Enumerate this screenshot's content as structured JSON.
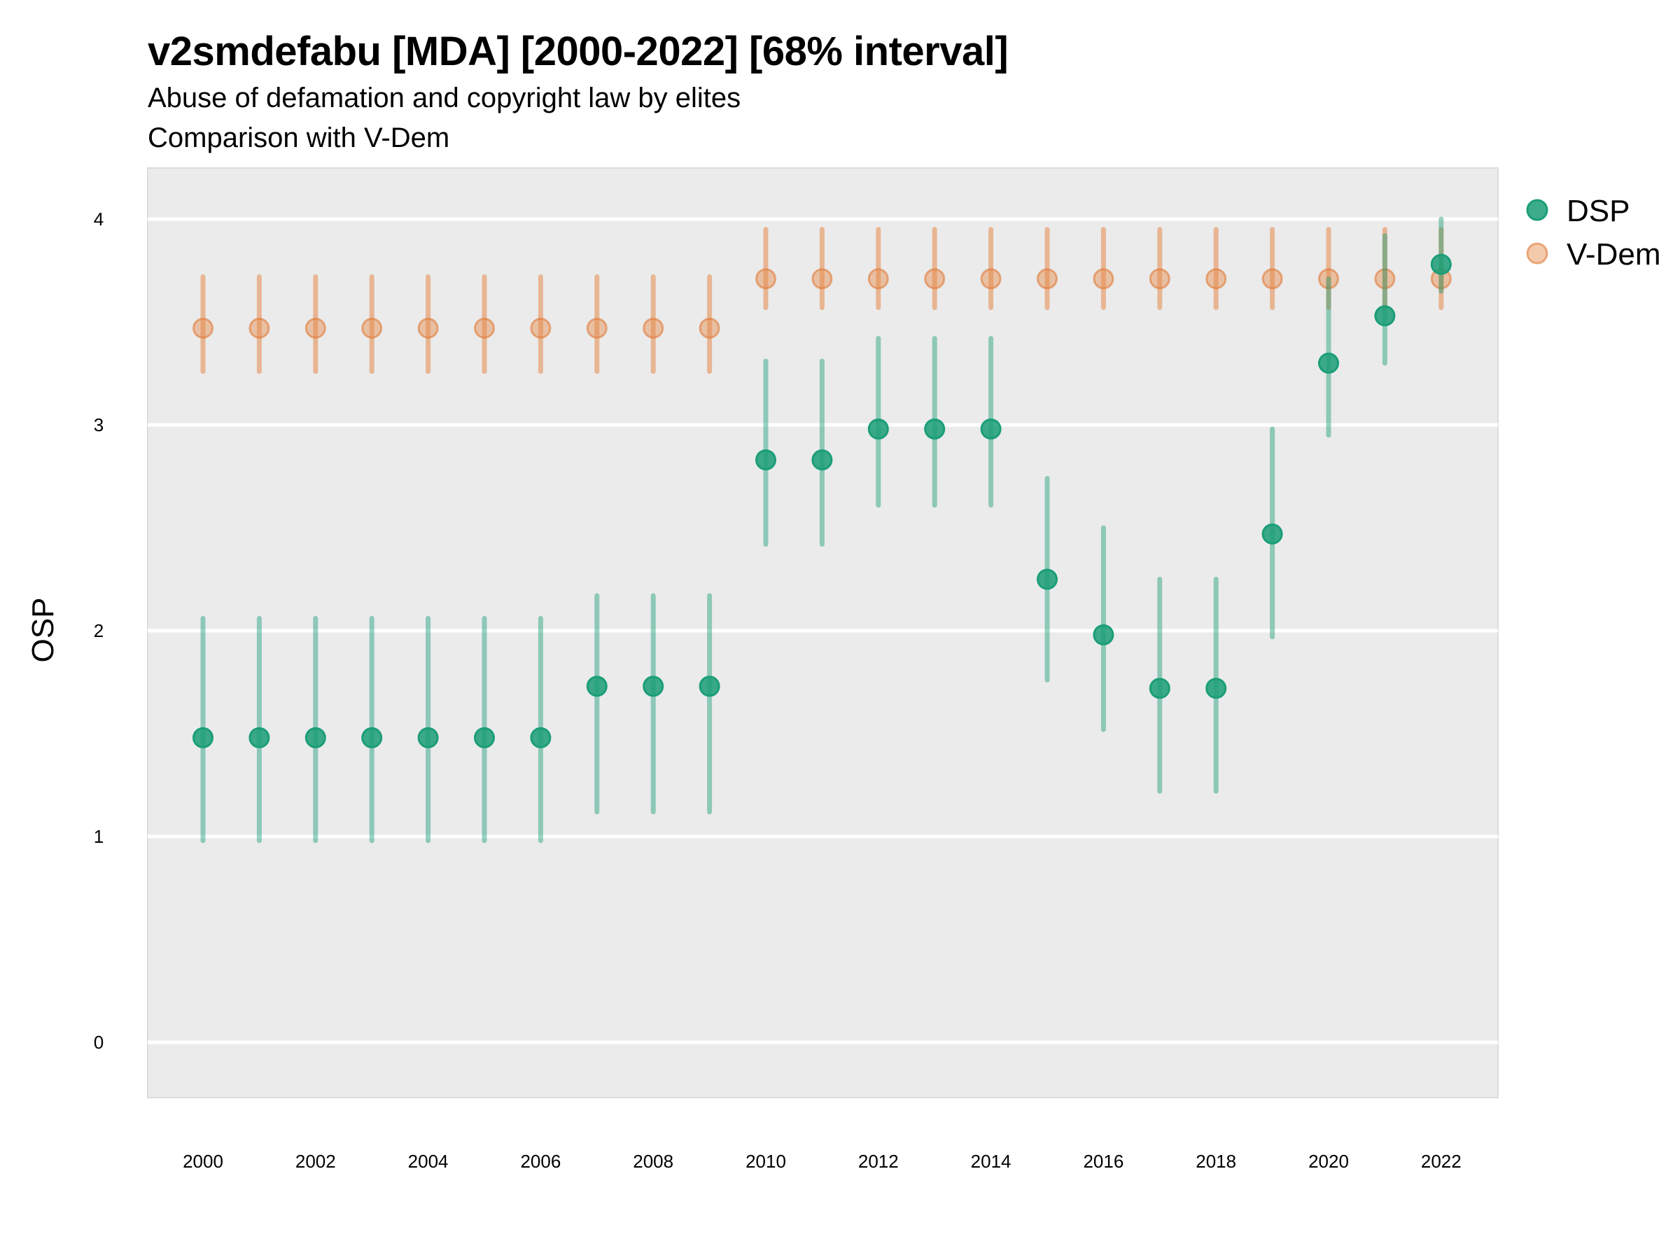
{
  "header": {
    "title": "v2smdefabu [MDA] [2000-2022] [68% interval]",
    "subtitle_1": "Abuse of defamation and copyright law by elites",
    "subtitle_2": "Comparison with V-Dem"
  },
  "colors": {
    "dsp": "#1B9E77",
    "vdem": "#E6894A",
    "panel_bg": "#EBEBEB",
    "grid": "#FFFFFF"
  },
  "chart_data": {
    "type": "scatter",
    "subtype": "point-range",
    "title": "v2smdefabu [MDA] [2000-2022] [68% interval]",
    "subtitle": "Abuse of defamation and copyright law by elites / Comparison with V-Dem",
    "xlabel": "",
    "ylabel": "OSP",
    "xlim": [
      1999,
      2023
    ],
    "ylim": [
      -0.25,
      4.25
    ],
    "grid": true,
    "legend_position": "right",
    "x_ticks": [
      2000,
      2002,
      2004,
      2006,
      2008,
      2010,
      2012,
      2014,
      2016,
      2018,
      2020,
      2022
    ],
    "x_tick_labels": [
      "2000",
      "2002",
      "2004",
      "2006",
      "2008",
      "2010",
      "2012",
      "2014",
      "2016",
      "2018",
      "2020",
      "2022"
    ],
    "y_ticks": [
      0,
      1,
      2,
      3,
      4
    ],
    "y_tick_labels": [
      "0",
      "1",
      "2",
      "3",
      "4"
    ],
    "x": [
      2000,
      2001,
      2002,
      2003,
      2004,
      2005,
      2006,
      2007,
      2008,
      2009,
      2010,
      2011,
      2012,
      2013,
      2014,
      2015,
      2016,
      2017,
      2018,
      2019,
      2020,
      2021,
      2022
    ],
    "series": [
      {
        "name": "V-Dem",
        "values": [
          3.47,
          3.47,
          3.47,
          3.47,
          3.47,
          3.47,
          3.47,
          3.47,
          3.47,
          3.47,
          3.71,
          3.71,
          3.71,
          3.71,
          3.71,
          3.71,
          3.71,
          3.71,
          3.71,
          3.71,
          3.71,
          3.71,
          3.71
        ],
        "lower": [
          3.26,
          3.26,
          3.26,
          3.26,
          3.26,
          3.26,
          3.26,
          3.26,
          3.26,
          3.26,
          3.57,
          3.57,
          3.57,
          3.57,
          3.57,
          3.57,
          3.57,
          3.57,
          3.57,
          3.57,
          3.57,
          3.57,
          3.57
        ],
        "upper": [
          3.72,
          3.72,
          3.72,
          3.72,
          3.72,
          3.72,
          3.72,
          3.72,
          3.72,
          3.72,
          3.95,
          3.95,
          3.95,
          3.95,
          3.95,
          3.95,
          3.95,
          3.95,
          3.95,
          3.95,
          3.95,
          3.95,
          3.95
        ]
      },
      {
        "name": "DSP",
        "values": [
          1.48,
          1.48,
          1.48,
          1.48,
          1.48,
          1.48,
          1.48,
          1.73,
          1.73,
          1.73,
          2.83,
          2.83,
          2.98,
          2.98,
          2.98,
          2.25,
          1.98,
          1.72,
          1.72,
          2.47,
          3.3,
          3.53,
          3.78
        ],
        "lower": [
          0.98,
          0.98,
          0.98,
          0.98,
          0.98,
          0.98,
          0.98,
          1.12,
          1.12,
          1.12,
          2.42,
          2.42,
          2.61,
          2.61,
          2.61,
          1.76,
          1.52,
          1.22,
          1.22,
          1.97,
          2.95,
          3.3,
          3.65
        ],
        "upper": [
          2.06,
          2.06,
          2.06,
          2.06,
          2.06,
          2.06,
          2.06,
          2.17,
          2.17,
          2.17,
          3.31,
          3.31,
          3.42,
          3.42,
          3.42,
          2.74,
          2.5,
          2.25,
          2.25,
          2.98,
          3.71,
          3.92,
          4.0
        ]
      }
    ],
    "legend": [
      "DSP",
      "V-Dem"
    ]
  }
}
